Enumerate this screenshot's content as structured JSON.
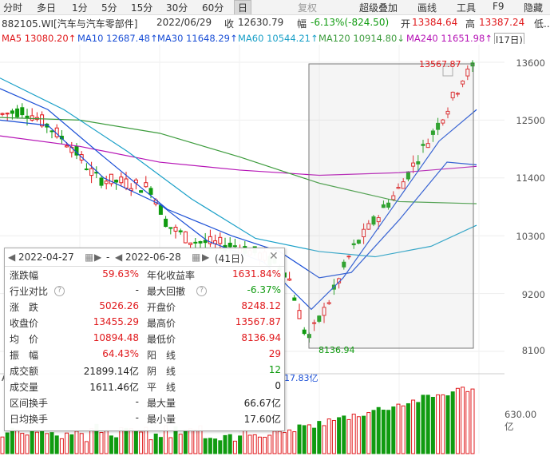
{
  "toolbar": {
    "items": [
      "分时",
      "多日",
      "1分",
      "5分",
      "15分",
      "30分",
      "60分",
      "日"
    ],
    "active": "日",
    "disabled_item": "复权",
    "right_items": [
      "超级叠加",
      "画线",
      "工具",
      "F9",
      "隐藏"
    ]
  },
  "title": {
    "code": "882105.WI[汽车与汽车零部件]",
    "date": "2022/06/29",
    "close_label": "收",
    "close": "12630.79",
    "change_label": "幅",
    "change": "-6.13%(-824.50)",
    "open_label": "开",
    "open": "13384.64",
    "high_label": "高",
    "high": "13387.24",
    "low_label": "低.."
  },
  "ma": {
    "ma5": "MA5 13080.20↑",
    "ma10": "MA10 12687.48↑",
    "ma30": "MA30 11648.29↑",
    "ma60": "MA60 10544.21↑",
    "ma120": "MA120 10914.80↓",
    "ma240": "MA240 11651.98↑",
    "extra": "l17日)"
  },
  "y_ticks": [
    "13600",
    "12500",
    "11400",
    "10300",
    "9200",
    "8100"
  ],
  "chart_labels": {
    "high_label": "13567.87",
    "low_label": "8136.94",
    "vol_label": "17.83亿",
    "vol_tick": "630.00亿",
    "vol_axis_letter": "A"
  },
  "colors": {
    "up": "#e0191c",
    "down": "#109b10",
    "ma_blue": "#1a4fd6",
    "ma_cyan": "#1aa0c8",
    "ma_magenta": "#b615b6",
    "ma_green": "#3d9c3d"
  },
  "popup": {
    "start_date": "2022-04-27",
    "sep": "-",
    "end_date": "2022-06-28",
    "days": "(41日)",
    "rows": [
      {
        "l1": "涨跌幅",
        "v1": "59.63%",
        "c1": "red",
        "l2": "年化收益率",
        "v2": "1631.84%",
        "c2": "red"
      },
      {
        "l1": "行业对比",
        "v1": "-",
        "c1": "dark",
        "l2": "最大回撤",
        "v2": "-6.37%",
        "c2": "green",
        "help1": true,
        "help2": true
      },
      {
        "l1": "涨　跌",
        "v1": "5026.26",
        "c1": "red",
        "l2": "开盘价",
        "v2": "8248.12",
        "c2": "red"
      },
      {
        "l1": "收盘价",
        "v1": "13455.29",
        "c1": "red",
        "l2": "最高价",
        "v2": "13567.87",
        "c2": "red"
      },
      {
        "l1": "均　价",
        "v1": "10894.48",
        "c1": "red",
        "l2": "最低价",
        "v2": "8136.94",
        "c2": "red"
      },
      {
        "l1": "振　幅",
        "v1": "64.43%",
        "c1": "red",
        "l2": "阳　线",
        "v2": "29",
        "c2": "red"
      },
      {
        "l1": "成交额",
        "v1": "21899.14亿",
        "c1": "dark",
        "l2": "阴　线",
        "v2": "12",
        "c2": "green"
      },
      {
        "l1": "成交量",
        "v1": "1611.46亿",
        "c1": "dark",
        "l2": "平　线",
        "v2": "0",
        "c2": "dark"
      },
      {
        "l1": "区间换手",
        "v1": "-",
        "c1": "dark",
        "l2": "最大量",
        "v2": "66.67亿",
        "c2": "dark"
      },
      {
        "l1": "日均换手",
        "v1": "-",
        "c1": "dark",
        "l2": "最小量",
        "v2": "17.60亿",
        "c2": "dark"
      }
    ]
  }
}
